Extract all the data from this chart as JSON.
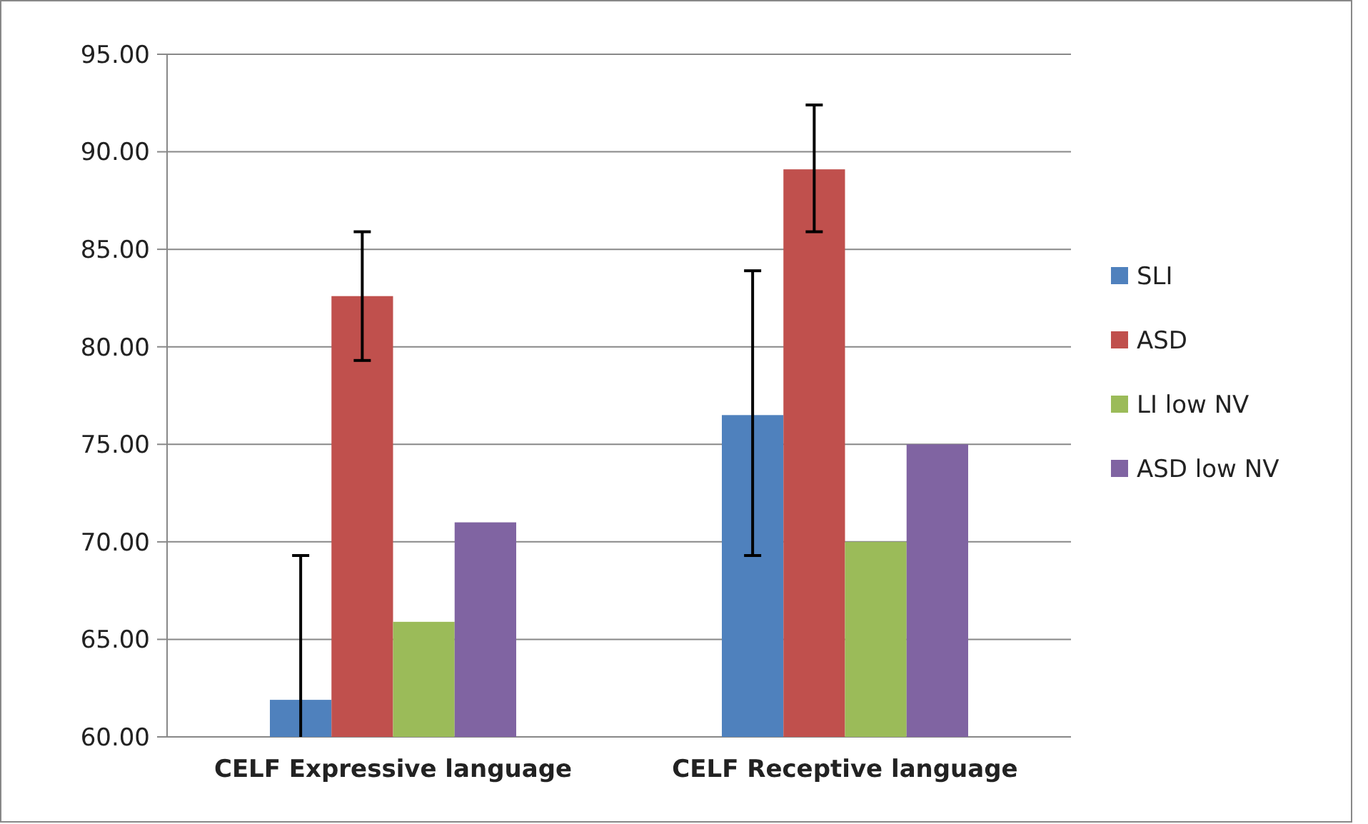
{
  "chart_data": {
    "type": "bar",
    "categories": [
      "CELF Expressive language",
      "CELF Receptive language"
    ],
    "series": [
      {
        "name": "SLI",
        "color": "#4f81bd",
        "values": [
          61.9,
          76.5
        ],
        "errors": [
          [
            60,
            69.3
          ],
          [
            69.3,
            83.9
          ]
        ]
      },
      {
        "name": "ASD",
        "color": "#c0504d",
        "values": [
          82.6,
          89.1
        ],
        "errors": [
          [
            79.3,
            85.9
          ],
          [
            85.9,
            92.4
          ]
        ]
      },
      {
        "name": "LI low NV",
        "color": "#9bbb59",
        "values": [
          65.9,
          70.0
        ]
      },
      {
        "name": "ASD low NV",
        "color": "#8064a2",
        "values": [
          71.0,
          75.0
        ]
      }
    ],
    "ylim": [
      60,
      95
    ],
    "yticks": [
      {
        "value": 60,
        "label": "60.00"
      },
      {
        "value": 65,
        "label": "65.00"
      },
      {
        "value": 70,
        "label": "70.00"
      },
      {
        "value": 75,
        "label": "75.00"
      },
      {
        "value": 80,
        "label": "80.00"
      },
      {
        "value": 85,
        "label": "85.00"
      },
      {
        "value": 90,
        "label": "90.00"
      },
      {
        "value": 95,
        "label": "95.00"
      }
    ],
    "grid": "y",
    "legend": "right"
  }
}
